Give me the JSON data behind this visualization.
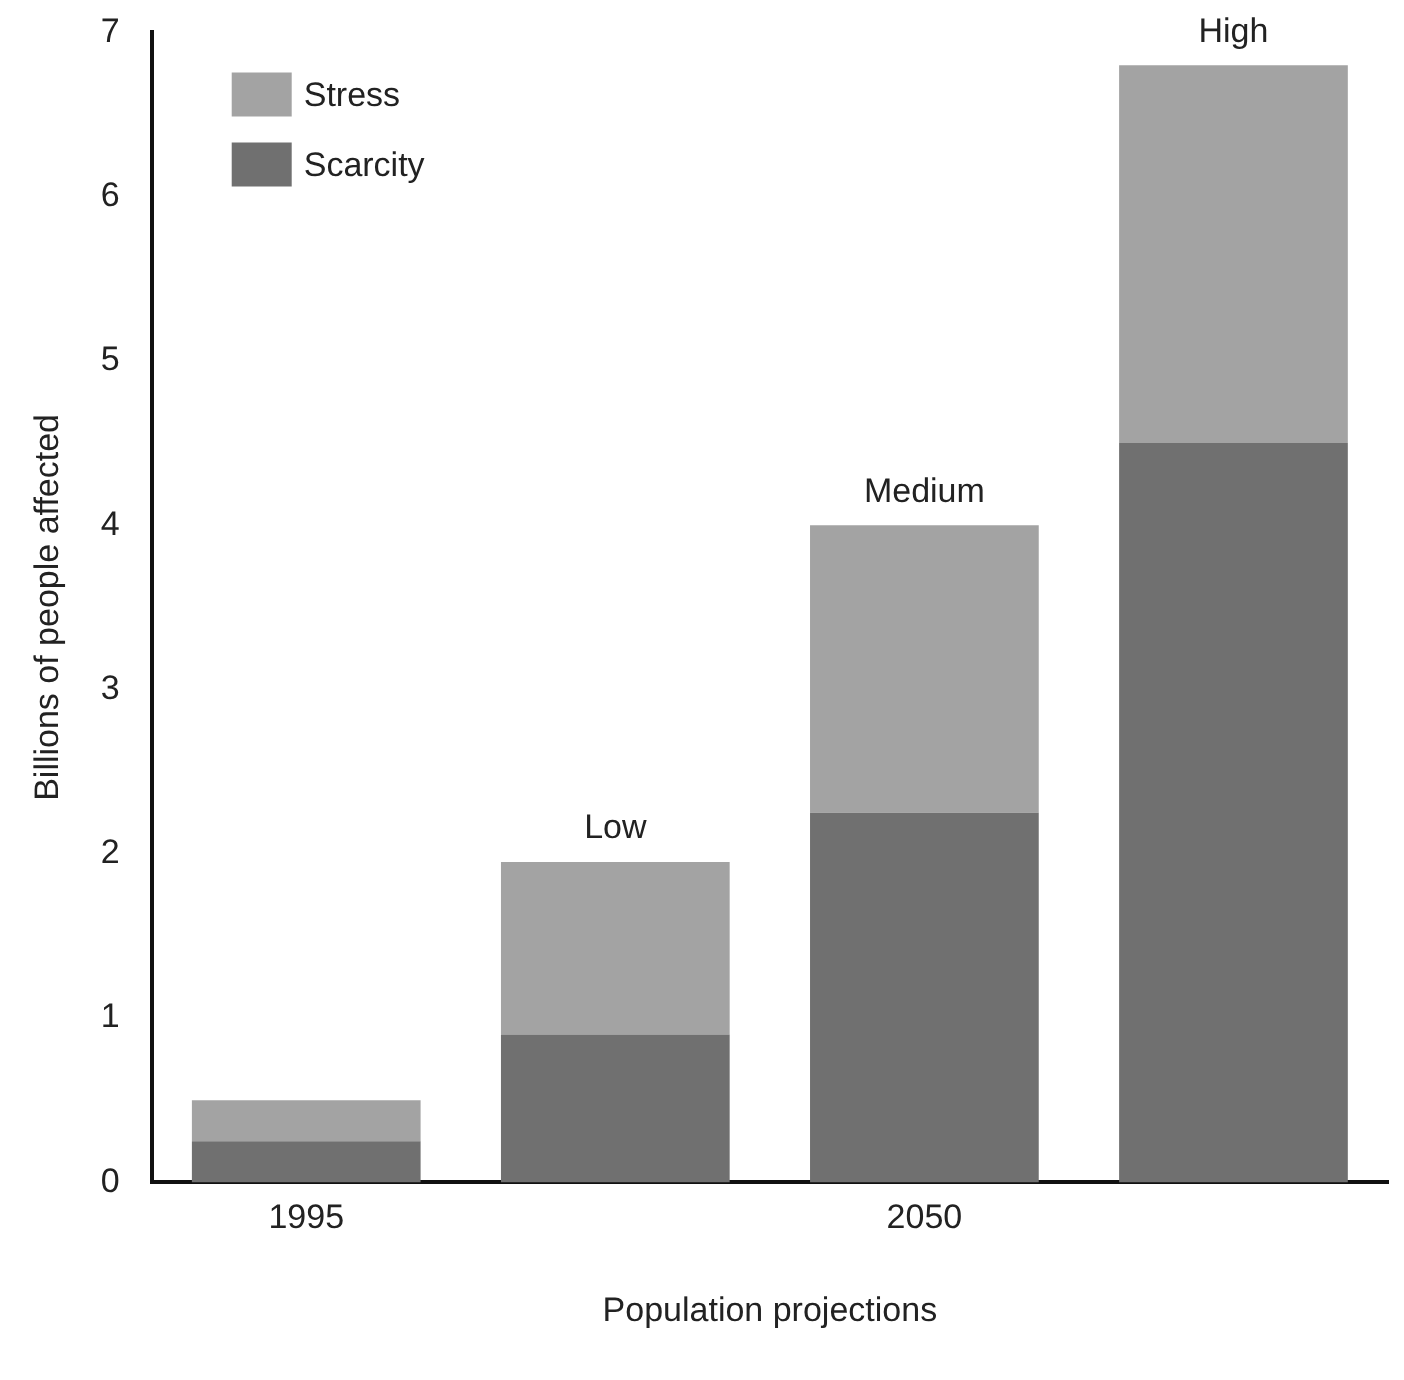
{
  "chart_data": {
    "type": "bar",
    "stacked": true,
    "xlabel": "Population projections",
    "ylabel": "Billions of people affected",
    "categories": [
      "1995",
      null,
      "2050",
      null
    ],
    "series": [
      {
        "name": "Scarcity",
        "color": "#707070",
        "values": [
          0.25,
          0.9,
          2.25,
          4.5
        ]
      },
      {
        "name": "Stress",
        "color": "#a3a3a3",
        "values": [
          0.25,
          1.05,
          1.75,
          2.3
        ]
      }
    ],
    "ylim": [
      0,
      7
    ],
    "yticks": [
      0,
      1,
      2,
      3,
      4,
      5,
      6,
      7
    ],
    "grid": false,
    "legend": "top left",
    "annotations": [
      {
        "text": "Low",
        "y": 1.95
      },
      {
        "text": "Medium",
        "y": 4
      },
      {
        "text": "High",
        "y": 6.8
      }
    ]
  }
}
